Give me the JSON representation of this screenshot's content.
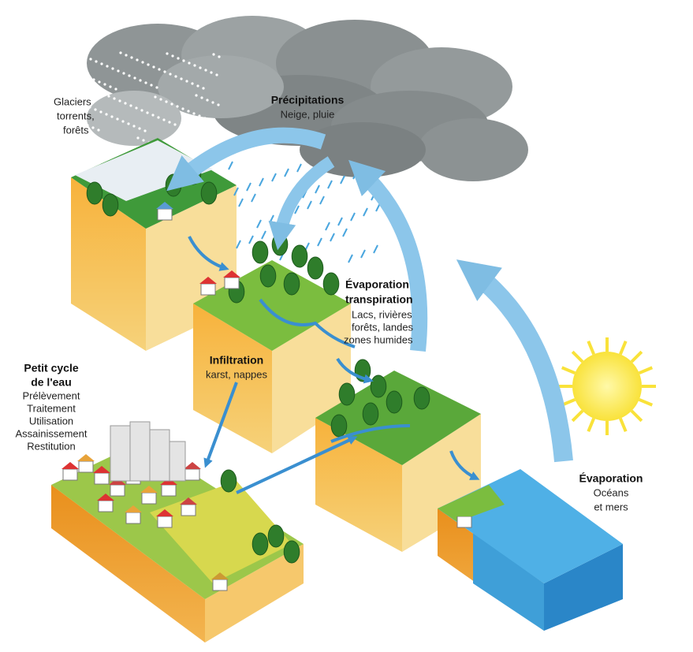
{
  "labels": {
    "glaciers": {
      "lines": [
        "Glaciers",
        "torrents,",
        "forêts"
      ]
    },
    "precipitations": {
      "title": "Précipitations",
      "lines": [
        "Neige, pluie"
      ]
    },
    "evapotranspiration": {
      "title": [
        "Évaporation",
        "transpiration"
      ],
      "lines": [
        "Lacs, rivières",
        "forêts, landes",
        "zones humides"
      ]
    },
    "infiltration": {
      "title": "Infiltration",
      "lines": [
        "karst, nappes"
      ]
    },
    "petit_cycle": {
      "title": [
        "Petit cycle",
        "de l'eau"
      ],
      "lines": [
        "Prélèvement",
        "Traitement",
        "Utilisation",
        "Assainissement",
        "Restitution"
      ]
    },
    "evaporation": {
      "title": "Évaporation",
      "lines": [
        "Océans",
        "et mers"
      ]
    }
  }
}
